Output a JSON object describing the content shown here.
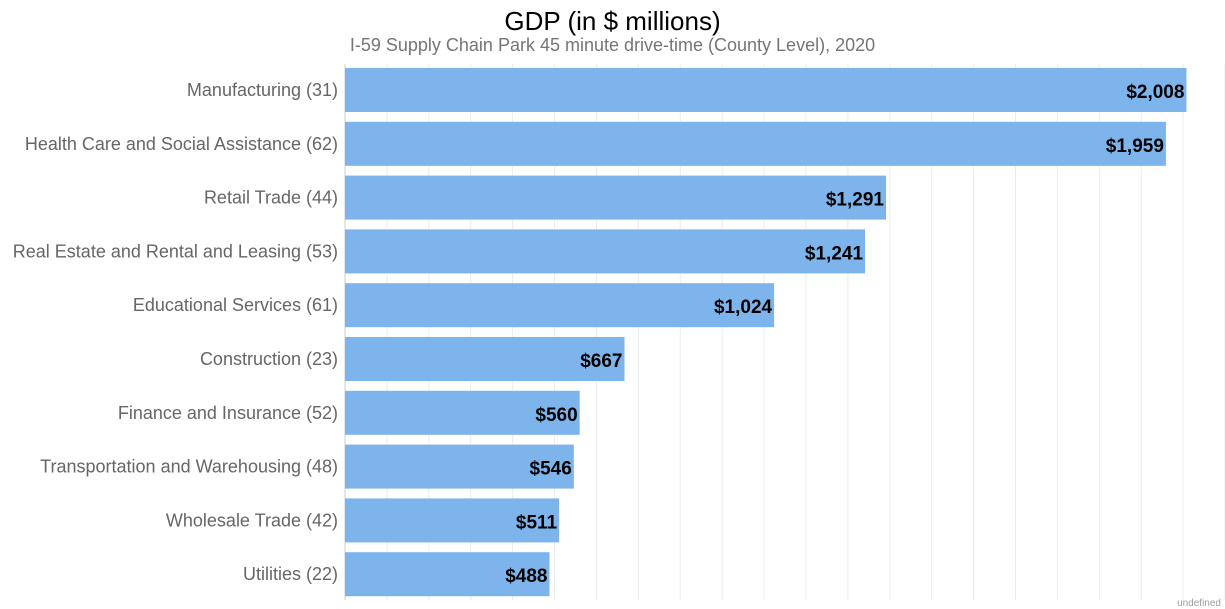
{
  "chart_data": {
    "type": "bar",
    "orientation": "horizontal",
    "title": "GDP (in $ millions)",
    "subtitle": "I-59 Supply Chain Park 45 minute drive-time (County Level), 2020",
    "categories": [
      "Manufacturing (31)",
      "Health Care and Social Assistance (62)",
      "Retail Trade (44)",
      "Real Estate and Rental and Leasing (53)",
      "Educational Services (61)",
      "Construction (23)",
      "Finance and Insurance (52)",
      "Transportation and Warehousing (48)",
      "Wholesale Trade (42)",
      "Utilities (22)"
    ],
    "values": [
      2008,
      1959,
      1291,
      1241,
      1024,
      667,
      560,
      546,
      511,
      488
    ],
    "value_labels": [
      "$2,008",
      "$1,959",
      "$1,291",
      "$1,241",
      "$1,024",
      "$667",
      "$560",
      "$546",
      "$511",
      "$488"
    ],
    "xlim": [
      0,
      2100
    ],
    "grid": true,
    "bar_color": "#7cb4eb",
    "label_color": "#000000",
    "category_color": "#666666"
  },
  "footer": {
    "credit": "undefined"
  }
}
